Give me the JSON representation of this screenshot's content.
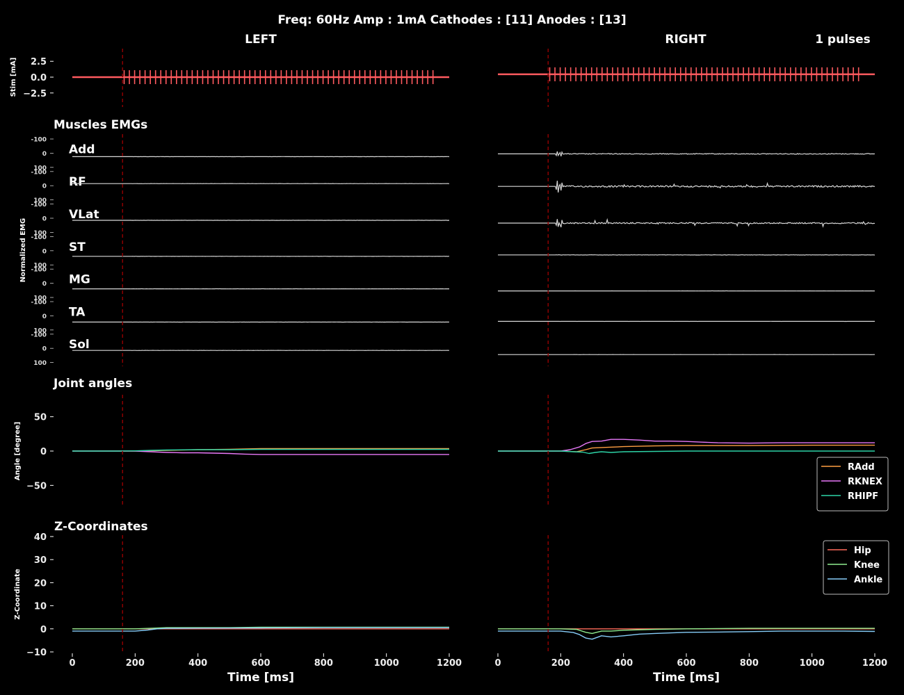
{
  "title": "Freq: 60Hz  Amp : 1mA  Cathodes : [11]  Anodes : [13]",
  "left_label": "LEFT",
  "right_label": "RIGHT",
  "pulses_label": "1 pulses",
  "colors": {
    "background": "#000000",
    "stim": "#ff5a5f",
    "stim_onset_line": "#8b0000",
    "emg": "#d8d8d8",
    "radd": "#ff9f43",
    "rknex": "#e879f9",
    "rhipf": "#2dd4a7",
    "hip": "#ff6b5a",
    "knee": "#90ee90",
    "ankle": "#87cefa"
  },
  "chart_data": [
    {
      "id": "stim",
      "type": "line",
      "title": "",
      "ylabel": "Stim [mA]",
      "xlim": [
        0,
        1200
      ],
      "ylim": [
        -4.5,
        4.5
      ],
      "yticks": [
        -2.5,
        0.0,
        2.5
      ],
      "ytick_labels": [
        "−2.5",
        "0.0",
        "2.5"
      ],
      "stim_onset_ms": 160,
      "pulse_start_ms": 165,
      "pulse_end_ms": 1150,
      "pulse_rate_hz": 60,
      "pulse_amplitude_ma": 1.1,
      "right_baseline_ma": 0.45
    },
    {
      "id": "emg",
      "type": "line",
      "title": "Muscles EMGs",
      "ylabel": "Normalized EMG",
      "xlim": [
        0,
        1200
      ],
      "yticks": [
        -100,
        0,
        100
      ],
      "ytick_labels": [
        "-100",
        "0",
        "100"
      ],
      "muscles": [
        "Add",
        "RF",
        "VLat",
        "ST",
        "MG",
        "TA",
        "Sol"
      ]
    },
    {
      "id": "angles",
      "type": "line",
      "title": "Joint angles",
      "ylabel": "Angle [degree]",
      "xlim": [
        0,
        1200
      ],
      "ylim": [
        -80,
        80
      ],
      "yticks": [
        -50,
        0,
        50
      ],
      "ytick_labels": [
        "−50",
        "0",
        "50"
      ],
      "legend": [
        "RAdd",
        "RKNEX",
        "RHIPF"
      ],
      "legend_position": "right",
      "left": {
        "RAdd": {
          "x": [
            0,
            150,
            200,
            300,
            400,
            500,
            600,
            800,
            1000,
            1200
          ],
          "y": [
            0,
            0,
            0,
            1,
            2,
            2.5,
            3.5,
            3.5,
            3.5,
            3.5
          ]
        },
        "RKNEX": {
          "x": [
            0,
            150,
            200,
            250,
            300,
            350,
            400,
            450,
            500,
            550,
            600,
            800,
            1000,
            1200
          ],
          "y": [
            0,
            0,
            0,
            -1,
            -2,
            -2.5,
            -2.5,
            -3,
            -3.5,
            -4.5,
            -5,
            -5,
            -5,
            -5
          ]
        },
        "RHIPF": {
          "x": [
            0,
            150,
            200,
            250,
            300,
            400,
            500,
            600,
            800,
            1000,
            1200
          ],
          "y": [
            0,
            0,
            0.3,
            1,
            1.5,
            2,
            2,
            2.5,
            2.5,
            2.5,
            2.5
          ]
        }
      },
      "right": {
        "RAdd": {
          "x": [
            0,
            150,
            200,
            250,
            280,
            300,
            350,
            400,
            500,
            600,
            800,
            1000,
            1200
          ],
          "y": [
            0,
            0,
            0,
            -1,
            2,
            4.5,
            5.5,
            6.5,
            7.5,
            8,
            8,
            8.5,
            8.5
          ]
        },
        "RKNEX": {
          "x": [
            0,
            150,
            200,
            230,
            260,
            280,
            300,
            330,
            360,
            400,
            450,
            500,
            550,
            600,
            650,
            700,
            800,
            900,
            1000,
            1200
          ],
          "y": [
            0,
            0,
            0,
            2,
            6,
            11,
            14,
            14.5,
            17,
            17,
            16,
            14.5,
            14.5,
            14,
            13,
            12,
            11.5,
            12,
            12,
            12
          ]
        },
        "RHIPF": {
          "x": [
            0,
            150,
            200,
            240,
            270,
            290,
            310,
            330,
            360,
            400,
            500,
            600,
            800,
            1000,
            1200
          ],
          "y": [
            0,
            0,
            0,
            -1,
            -1.5,
            -3.5,
            -2,
            -1,
            -2,
            -1,
            -0.5,
            0,
            0,
            0,
            0
          ]
        }
      }
    },
    {
      "id": "zcoords",
      "type": "line",
      "title": "Z-Coordinates",
      "ylabel": "Z-Coordinate",
      "xlabel": "Time [ms]",
      "xlim": [
        0,
        1200
      ],
      "ylim": [
        -10,
        40
      ],
      "yticks": [
        -10,
        0,
        10,
        20,
        30,
        40
      ],
      "ytick_labels": [
        "−10",
        "0",
        "10",
        "20",
        "30",
        "40"
      ],
      "xticks": [
        0,
        200,
        400,
        600,
        800,
        1000,
        1200
      ],
      "legend": [
        "Hip",
        "Knee",
        "Ankle"
      ],
      "legend_position": "top-right",
      "left": {
        "Hip": {
          "x": [
            0,
            200,
            400,
            600,
            800,
            1200
          ],
          "y": [
            0,
            0,
            0,
            0,
            0,
            0
          ]
        },
        "Knee": {
          "x": [
            0,
            200,
            260,
            300,
            400,
            500,
            600,
            800,
            1200
          ],
          "y": [
            0,
            0,
            0.3,
            0.5,
            0.5,
            0.5,
            0.7,
            0.7,
            0.7
          ]
        },
        "Ankle": {
          "x": [
            0,
            150,
            200,
            240,
            270,
            300,
            400,
            600,
            800,
            1000,
            1200
          ],
          "y": [
            -1,
            -1,
            -1,
            -0.5,
            0,
            0.2,
            0.3,
            0.4,
            0.5,
            0.5,
            0.5
          ]
        }
      },
      "right": {
        "Hip": {
          "x": [
            0,
            200,
            400,
            600,
            800,
            1200
          ],
          "y": [
            0,
            0,
            0,
            0,
            0,
            0
          ]
        },
        "Knee": {
          "x": [
            0,
            200,
            250,
            280,
            300,
            330,
            360,
            400,
            500,
            600,
            800,
            1000,
            1200
          ],
          "y": [
            0,
            0,
            -0.2,
            -1.5,
            -2,
            -1,
            -1,
            -0.6,
            -0.2,
            0,
            0.2,
            0.2,
            0.2
          ]
        },
        "Ankle": {
          "x": [
            0,
            150,
            200,
            240,
            260,
            280,
            300,
            330,
            360,
            400,
            450,
            500,
            600,
            700,
            800,
            900,
            1000,
            1100,
            1200
          ],
          "y": [
            -1,
            -1,
            -1,
            -1.6,
            -2.5,
            -4,
            -4.5,
            -3,
            -3.5,
            -3,
            -2.3,
            -2,
            -1.5,
            -1.4,
            -1.2,
            -1,
            -1,
            -1,
            -1.1
          ]
        }
      }
    }
  ]
}
